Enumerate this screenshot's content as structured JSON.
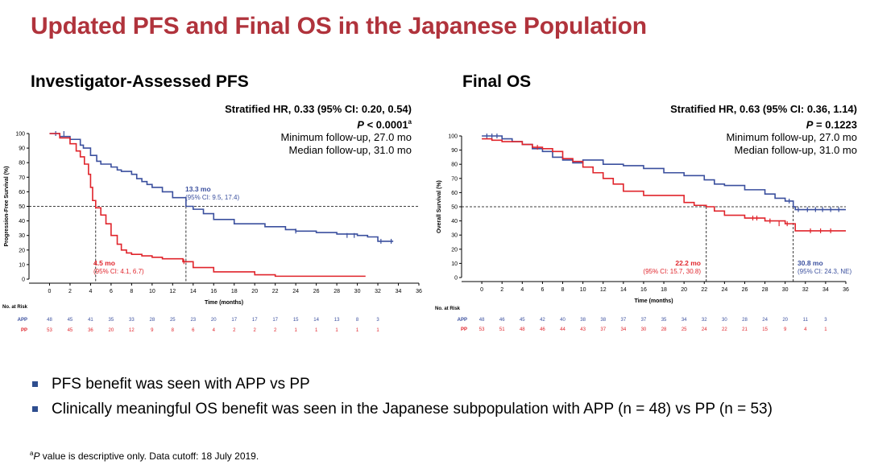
{
  "slide": {
    "title": "Updated PFS and Final OS in the Japanese Population",
    "footnote_marker": "a",
    "footnote_p": "P",
    "footnote_text": " value is descriptive only. Data cutoff: 18 July 2019."
  },
  "colors": {
    "title": "#b0333c",
    "app": "#3a4f9e",
    "pp": "#e0242b",
    "bullet": "#2e4e8f"
  },
  "bullets": [
    "PFS benefit was seen with APP vs PP",
    "Clinically meaningful OS benefit was seen in the Japanese subpopulation with APP (n = 48) vs PP (n = 53)"
  ],
  "chart_data": [
    {
      "type": "line",
      "step": true,
      "title": "Investigator-Assessed PFS",
      "xlabel": "Time (months)",
      "ylabel": "Progression-Free Survival (%)",
      "xlim": [
        -2,
        36
      ],
      "ylim": [
        0,
        100
      ],
      "xticks": [
        0,
        2,
        4,
        6,
        8,
        10,
        12,
        14,
        16,
        18,
        20,
        22,
        24,
        26,
        28,
        30,
        32,
        34,
        36
      ],
      "yticks": [
        0,
        10,
        20,
        30,
        40,
        50,
        60,
        70,
        80,
        90,
        100
      ],
      "stats": {
        "hr_label": "Stratified HR, 0.33 (95% CI: 0.20, 0.54)",
        "p_label": "P",
        "p_value": " < 0.0001",
        "p_marker": "a",
        "min_fu": "Minimum follow-up, 27.0 mo",
        "med_fu": "Median follow-up, 31.0 mo"
      },
      "series": [
        {
          "name": "APP",
          "color": "#3a4f9e",
          "x": [
            0,
            1,
            2,
            3,
            3.3,
            4,
            4.6,
            5,
            6,
            6.6,
            7,
            8,
            8.5,
            9,
            9.5,
            10,
            11,
            12,
            13.3,
            14,
            15,
            16,
            18,
            21,
            23,
            24,
            26,
            28,
            30,
            31,
            32,
            33.5
          ],
          "y": [
            100,
            98,
            96,
            92,
            90,
            85,
            81,
            79,
            77,
            75,
            74,
            72,
            69,
            67,
            65,
            63,
            60,
            56,
            50,
            48,
            45,
            41,
            38,
            36,
            34,
            33,
            32,
            31,
            30,
            29,
            26,
            26
          ],
          "censors": [
            [
              0.6,
              100
            ],
            [
              1.4,
              100
            ],
            [
              24,
              33
            ],
            [
              29,
              30
            ],
            [
              29.7,
              30
            ],
            [
              32.3,
              26
            ],
            [
              33.3,
              26
            ]
          ]
        },
        {
          "name": "PP",
          "color": "#e0242b",
          "x": [
            0,
            1,
            2,
            2.6,
            3,
            3.4,
            3.8,
            4,
            4.2,
            4.5,
            5,
            5.5,
            6,
            6.6,
            7,
            7.5,
            8,
            9,
            10,
            11,
            13,
            14,
            16,
            20,
            22,
            24,
            26,
            28,
            30.8
          ],
          "y": [
            100,
            97,
            93,
            88,
            84,
            79,
            72,
            63,
            54,
            49,
            44,
            38,
            30,
            24,
            20,
            18,
            17,
            16,
            15,
            14,
            12,
            8,
            5,
            3,
            2,
            2,
            2,
            2,
            2
          ],
          "censors": [
            [
              13.1,
              12
            ]
          ]
        }
      ],
      "medians": [
        {
          "name": "APP",
          "median": 13.3,
          "label": "13.3 mo",
          "ci": "(95% CI: 9.5, 17.4)"
        },
        {
          "name": "PP",
          "median": 4.5,
          "label": "4.5 mo",
          "ci": "(95% CI: 4.1, 6.7)"
        }
      ],
      "risk_table": {
        "label": "No. at Risk",
        "rows": [
          {
            "name": "APP",
            "values": [
              "48",
              "45",
              "41",
              "35",
              "33",
              "28",
              "25",
              "23",
              "20",
              "17",
              "17",
              "17",
              "15",
              "14",
              "13",
              "8",
              "3"
            ]
          },
          {
            "name": "PP",
            "values": [
              "53",
              "45",
              "36",
              "20",
              "12",
              "9",
              "8",
              "6",
              "4",
              "2",
              "2",
              "2",
              "1",
              "1",
              "1",
              "1",
              "1"
            ]
          }
        ]
      }
    },
    {
      "type": "line",
      "step": true,
      "title": "Final OS",
      "xlabel": "Time (months)",
      "ylabel": "Overall Survival (%)",
      "xlim": [
        -2,
        36
      ],
      "ylim": [
        0,
        100
      ],
      "xticks": [
        0,
        2,
        4,
        6,
        8,
        10,
        12,
        14,
        16,
        18,
        20,
        22,
        24,
        26,
        28,
        30,
        32,
        34,
        36
      ],
      "yticks": [
        0,
        10,
        20,
        30,
        40,
        50,
        60,
        70,
        80,
        90,
        100
      ],
      "stats": {
        "hr_label": "Stratified HR, 0.63 (95% CI: 0.36, 1.14)",
        "p_label": "P",
        "p_value": " = 0.1223",
        "p_marker": "",
        "min_fu": "Minimum follow-up, 27.0 mo",
        "med_fu": "Median follow-up, 31.0 mo"
      },
      "series": [
        {
          "name": "APP",
          "color": "#3a4f9e",
          "x": [
            0,
            2,
            3,
            4,
            5,
            6,
            7,
            8,
            9,
            10,
            12,
            14,
            16,
            18,
            20,
            22,
            23,
            24,
            26,
            28,
            29,
            30,
            30.8,
            31,
            32,
            36
          ],
          "y": [
            100,
            98,
            96,
            94,
            91,
            89,
            85,
            83,
            81,
            83,
            80,
            79,
            77,
            74,
            72,
            69,
            66,
            65,
            62,
            59,
            56,
            54,
            50,
            48,
            48,
            48
          ],
          "censors": [
            [
              0.5,
              100
            ],
            [
              1,
              100
            ],
            [
              1.5,
              100
            ],
            [
              30.4,
              54
            ],
            [
              31.3,
              48
            ],
            [
              32.2,
              48
            ],
            [
              33,
              48
            ],
            [
              33.7,
              48
            ],
            [
              34.5,
              48
            ],
            [
              35.3,
              48
            ]
          ]
        },
        {
          "name": "PP",
          "color": "#e0242b",
          "x": [
            0,
            1,
            2,
            4,
            5,
            6,
            7,
            8,
            9,
            10,
            11,
            12,
            13,
            14,
            16,
            18,
            20,
            21,
            22.2,
            23,
            24,
            26,
            28,
            30,
            31,
            36
          ],
          "y": [
            98,
            97,
            96,
            94,
            92,
            91,
            89,
            84,
            82,
            78,
            74,
            70,
            66,
            61,
            58,
            58,
            53,
            51,
            50,
            47,
            44,
            42,
            40,
            38,
            33,
            33
          ],
          "censors": [
            [
              5.5,
              92
            ],
            [
              26.8,
              42
            ],
            [
              27.2,
              42
            ],
            [
              28.5,
              40
            ],
            [
              29.4,
              38
            ],
            [
              30.2,
              38
            ],
            [
              32.5,
              33
            ],
            [
              33.5,
              33
            ],
            [
              34.5,
              33
            ]
          ]
        }
      ],
      "medians": [
        {
          "name": "PP",
          "median": 22.2,
          "label": "22.2 mo",
          "ci": "(95% CI: 15.7, 30.8)"
        },
        {
          "name": "APP",
          "median": 30.8,
          "label": "30.8 mo",
          "ci": "(95% CI: 24.3, NE)"
        }
      ],
      "risk_table": {
        "label": "No. at Risk",
        "rows": [
          {
            "name": "APP",
            "values": [
              "48",
              "46",
              "45",
              "42",
              "40",
              "38",
              "38",
              "37",
              "37",
              "35",
              "34",
              "32",
              "30",
              "28",
              "24",
              "20",
              "11",
              "3"
            ]
          },
          {
            "name": "PP",
            "values": [
              "53",
              "51",
              "48",
              "46",
              "44",
              "43",
              "37",
              "34",
              "30",
              "28",
              "25",
              "24",
              "22",
              "21",
              "15",
              "9",
              "4",
              "1"
            ]
          }
        ]
      }
    }
  ]
}
